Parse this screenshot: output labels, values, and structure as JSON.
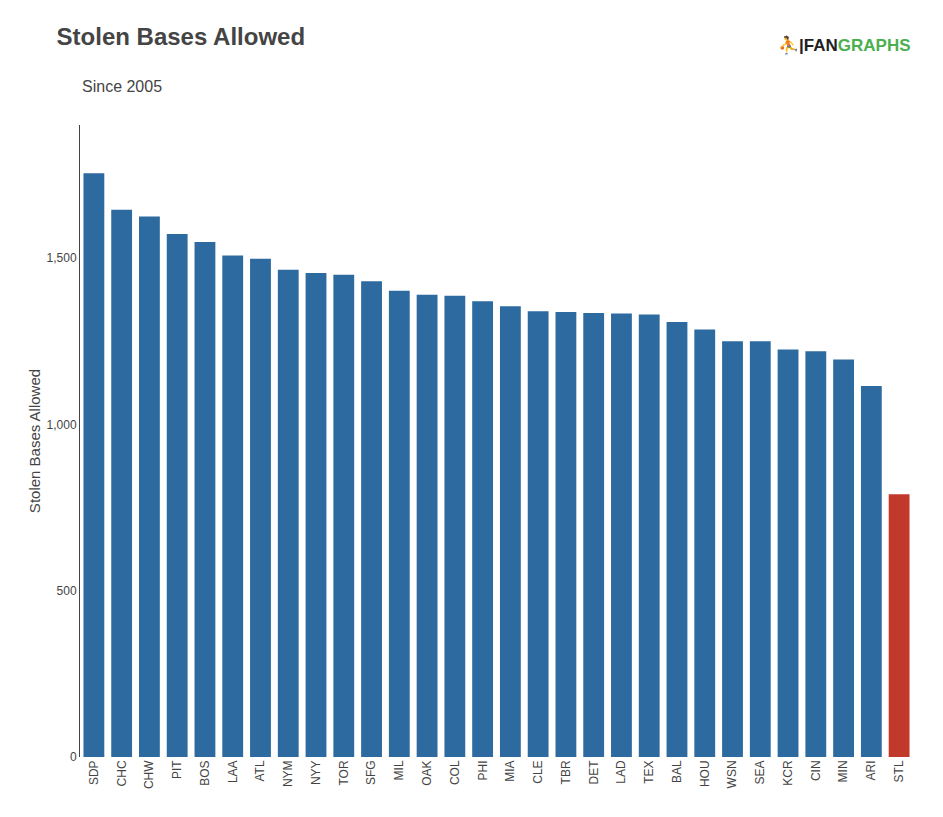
{
  "chart_data": {
    "type": "bar",
    "title": "Stolen Bases Allowed",
    "subtitle": "Since 2005",
    "ylabel": "Stolen Bases Allowed",
    "categories": [
      "SDP",
      "CHC",
      "CHW",
      "PIT",
      "BOS",
      "LAA",
      "ATL",
      "NYM",
      "NYY",
      "TOR",
      "SFG",
      "MIL",
      "OAK",
      "COL",
      "PHI",
      "MIA",
      "CLE",
      "TBR",
      "DET",
      "LAD",
      "TEX",
      "BAL",
      "HOU",
      "WSN",
      "SEA",
      "KCR",
      "CIN",
      "MIN",
      "ARI",
      "STL"
    ],
    "values": [
      1755,
      1645,
      1625,
      1572,
      1548,
      1508,
      1498,
      1465,
      1455,
      1450,
      1430,
      1402,
      1390,
      1387,
      1370,
      1355,
      1340,
      1338,
      1335,
      1333,
      1330,
      1308,
      1285,
      1250,
      1250,
      1225,
      1220,
      1195,
      1115,
      790
    ],
    "colors": [
      "#2D6A9F",
      "#2D6A9F",
      "#2D6A9F",
      "#2D6A9F",
      "#2D6A9F",
      "#2D6A9F",
      "#2D6A9F",
      "#2D6A9F",
      "#2D6A9F",
      "#2D6A9F",
      "#2D6A9F",
      "#2D6A9F",
      "#2D6A9F",
      "#2D6A9F",
      "#2D6A9F",
      "#2D6A9F",
      "#2D6A9F",
      "#2D6A9F",
      "#2D6A9F",
      "#2D6A9F",
      "#2D6A9F",
      "#2D6A9F",
      "#2D6A9F",
      "#2D6A9F",
      "#2D6A9F",
      "#2D6A9F",
      "#2D6A9F",
      "#2D6A9F",
      "#2D6A9F",
      "#C0392B"
    ],
    "ylim": [
      0,
      1900
    ],
    "yticks": [
      0,
      500,
      {
        "value": 1000,
        "label": "1,000"
      },
      {
        "value": 1500,
        "label": "1,500"
      }
    ],
    "grid": false,
    "annotations": [
      {
        "text": "⛹|",
        "color": "#222222"
      },
      {
        "text": "FAN",
        "color": "#222222"
      },
      {
        "text": "GRAPHS",
        "color": "#4CAF50"
      }
    ]
  }
}
